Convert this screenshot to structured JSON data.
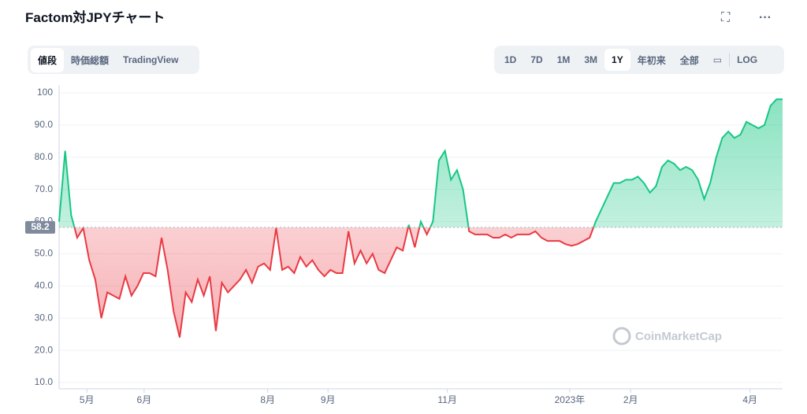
{
  "header": {
    "title": "Factom対JPYチャート"
  },
  "tabs": [
    "値段",
    "時価総額",
    "TradingView"
  ],
  "ranges": [
    "1D",
    "7D",
    "1M",
    "3M",
    "1Y",
    "年初来",
    "全部"
  ],
  "log": "LOG",
  "watermark": "CoinMarketCap",
  "chart_data": {
    "type": "line",
    "baseline": 58.2,
    "up_color": "#16c784",
    "down_color": "#ea3943",
    "xlim": [
      0,
      120
    ],
    "xticks": [
      {
        "value": 4.6,
        "label": "5月"
      },
      {
        "value": 14.1,
        "label": "6月"
      },
      {
        "value": 34.6,
        "label": "8月"
      },
      {
        "value": 44.6,
        "label": "9月"
      },
      {
        "value": 64.4,
        "label": "11月"
      },
      {
        "value": 84.7,
        "label": "2023年"
      },
      {
        "value": 94.8,
        "label": "2月"
      },
      {
        "value": 114.6,
        "label": "4月"
      }
    ],
    "ylim": [
      10,
      100
    ],
    "yticks": [
      {
        "value": 10,
        "label": "10.0"
      },
      {
        "value": 20,
        "label": "20.0"
      },
      {
        "value": 30,
        "label": "30.0"
      },
      {
        "value": 40,
        "label": "40.0"
      },
      {
        "value": 50,
        "label": "50.0"
      },
      {
        "value": 60,
        "label": "60.0"
      },
      {
        "value": 70,
        "label": "70.0"
      },
      {
        "value": 80,
        "label": "80.0"
      },
      {
        "value": 90,
        "label": "90.0"
      },
      100
    ],
    "grid": true,
    "values": [
      60,
      82,
      62,
      55,
      58,
      48,
      42,
      30,
      38,
      37,
      36,
      43,
      37,
      40,
      44,
      44,
      43,
      55,
      45,
      32,
      24,
      38,
      35,
      42,
      37,
      43,
      26,
      41,
      38,
      40,
      42,
      45,
      41,
      46,
      47,
      45,
      58,
      45,
      46,
      44,
      49,
      46,
      48,
      45,
      43,
      45,
      44,
      44,
      57,
      47,
      51,
      47,
      50,
      45,
      44,
      48,
      52,
      51,
      59,
      52,
      60,
      56,
      60,
      79,
      82,
      73,
      76,
      70,
      57,
      56,
      56,
      56,
      55,
      55,
      56,
      55,
      56,
      56,
      56,
      57,
      55,
      54,
      54,
      54,
      53,
      52.5,
      53,
      54,
      55,
      60,
      64,
      68,
      72,
      72,
      73,
      73,
      74,
      72,
      69,
      71,
      77,
      79,
      78,
      76,
      77,
      76,
      73,
      67,
      72,
      80,
      86,
      88,
      86,
      87,
      91,
      90,
      89,
      90,
      96,
      98,
      98
    ]
  }
}
